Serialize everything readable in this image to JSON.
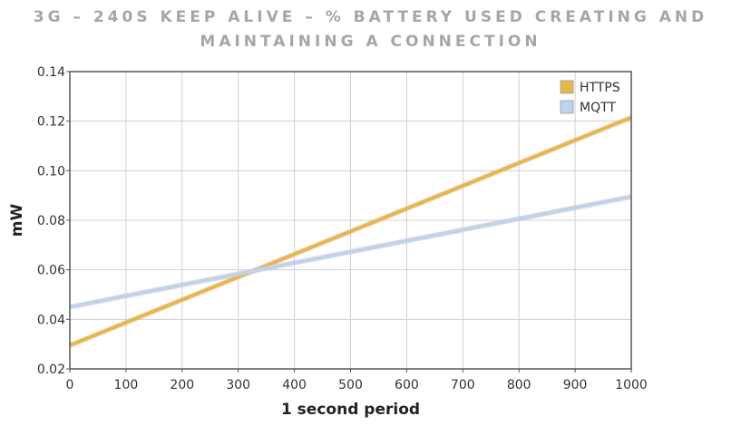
{
  "chart_data": {
    "type": "line",
    "title_lines": [
      "3G – 240S KEEP ALIVE – % BATTERY USED CREATING AND",
      "MAINTAINING A CONNECTION"
    ],
    "xlabel": "1 second period",
    "ylabel": "mW",
    "xlim": [
      0,
      1000
    ],
    "ylim": [
      0.02,
      0.14
    ],
    "x_ticks": [
      0,
      100,
      200,
      300,
      400,
      500,
      600,
      700,
      800,
      900,
      1000
    ],
    "y_ticks": [
      "0.02",
      "0.04",
      "0.06",
      "0.08",
      "0.10",
      "0.12",
      "0.14"
    ],
    "grid": true,
    "legend_position": "top-right",
    "series": [
      {
        "name": "HTTPS",
        "color": "#e6b84a",
        "x": [
          0,
          1000
        ],
        "y": [
          0.0295,
          0.1215
        ]
      },
      {
        "name": "MQTT",
        "color": "#bcd4ec",
        "x": [
          0,
          1000
        ],
        "y": [
          0.045,
          0.0895
        ]
      }
    ]
  }
}
